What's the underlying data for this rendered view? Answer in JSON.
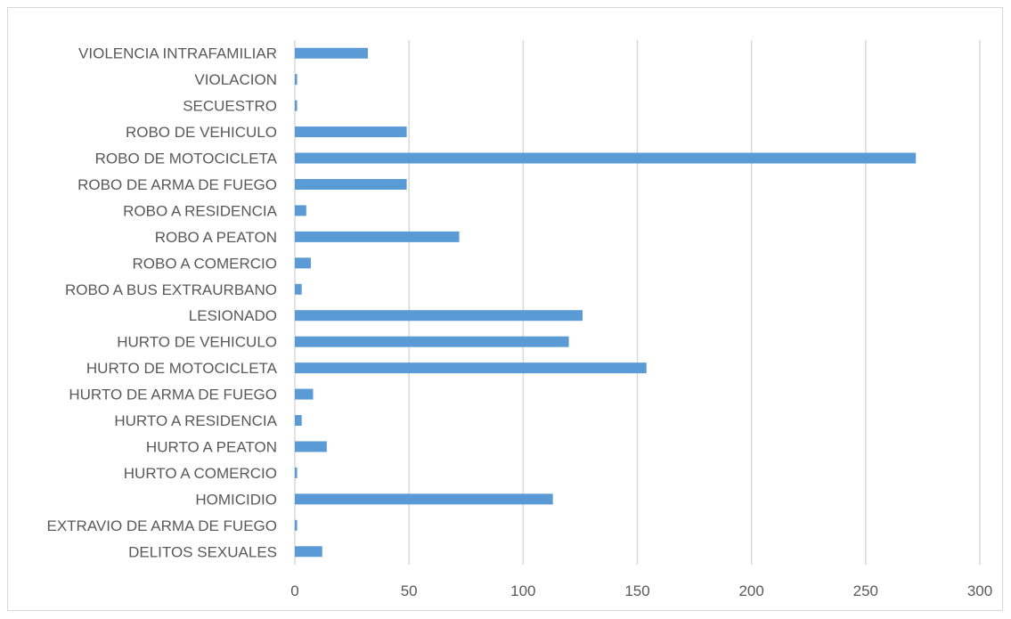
{
  "chart_data": {
    "type": "bar",
    "orientation": "horizontal",
    "title": "",
    "xlabel": "",
    "ylabel": "",
    "xlim": [
      0,
      300
    ],
    "x_ticks": [
      0,
      50,
      100,
      150,
      200,
      250,
      300
    ],
    "grid": "vertical",
    "legend": "none",
    "bar_color": "#5b9bd5",
    "categories": [
      "VIOLENCIA INTRAFAMILIAR",
      "VIOLACION",
      "SECUESTRO",
      "ROBO DE VEHICULO",
      "ROBO DE MOTOCICLETA",
      "ROBO DE ARMA DE FUEGO",
      "ROBO A RESIDENCIA",
      "ROBO A PEATON",
      "ROBO A COMERCIO",
      "ROBO A BUS EXTRAURBANO",
      "LESIONADO",
      "HURTO DE VEHICULO",
      "HURTO DE MOTOCICLETA",
      "HURTO DE ARMA DE FUEGO",
      "HURTO A RESIDENCIA",
      "HURTO A PEATON",
      "HURTO A COMERCIO",
      "HOMICIDIO",
      "EXTRAVIO DE ARMA DE FUEGO",
      "DELITOS SEXUALES"
    ],
    "values": [
      32,
      1,
      1,
      49,
      272,
      49,
      5,
      72,
      7,
      3,
      126,
      120,
      154,
      8,
      3,
      14,
      1,
      113,
      1,
      12
    ]
  }
}
